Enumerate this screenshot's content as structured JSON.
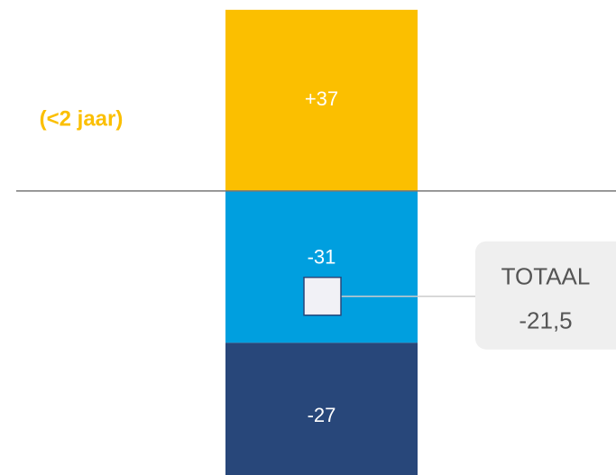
{
  "chart_data": {
    "type": "bar",
    "stacked": true,
    "categories": [
      "(<2 jaar)"
    ],
    "category_color": "#fbbf00",
    "series": [
      {
        "color": "#fbbf00",
        "values": [
          37
        ],
        "value_labels": [
          "+37"
        ]
      },
      {
        "color": "#009fdf",
        "values": [
          -31
        ],
        "value_labels": [
          "-31"
        ]
      },
      {
        "color": "#28477a",
        "values": [
          -27
        ],
        "value_labels": [
          "-27"
        ]
      }
    ],
    "total": {
      "label": "TOTAAL",
      "value": -21.5,
      "value_label": "-21,5"
    },
    "ylim": [
      -58,
      39
    ]
  }
}
